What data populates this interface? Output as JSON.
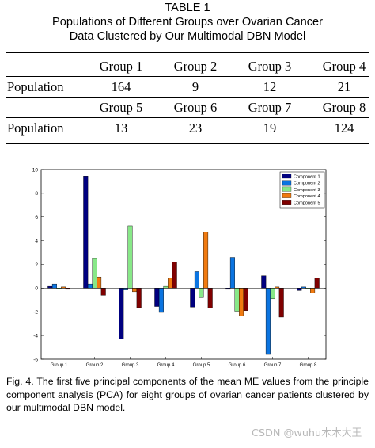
{
  "table": {
    "title_line1": "TABLE 1",
    "title_line2": "Populations of Different Groups over Ovarian Cancer",
    "title_line3": "Data Clustered by Our Multimodal DBN Model",
    "row1_headers": [
      "Group 1",
      "Group 2",
      "Group 3",
      "Group 4"
    ],
    "row1_label": "Population",
    "row1_values": [
      "164",
      "9",
      "12",
      "21"
    ],
    "row2_headers": [
      "Group 5",
      "Group 6",
      "Group 7",
      "Group 8"
    ],
    "row2_label": "Population",
    "row2_values": [
      "13",
      "23",
      "19",
      "124"
    ]
  },
  "chart_data": {
    "type": "bar",
    "categories": [
      "Group 1",
      "Group 2",
      "Group 3",
      "Group 4",
      "Group 5",
      "Group 6",
      "Group 7",
      "Group 8"
    ],
    "series": [
      {
        "name": "Component 1",
        "color": "#000080",
        "values": [
          0.15,
          9.45,
          -4.3,
          -1.55,
          -1.6,
          -0.1,
          1.05,
          -0.2
        ]
      },
      {
        "name": "Component 2",
        "color": "#0b74e0",
        "values": [
          0.35,
          0.35,
          -0.15,
          -2.05,
          1.4,
          2.6,
          -5.6,
          0.1
        ]
      },
      {
        "name": "Component 3",
        "color": "#88e888",
        "values": [
          -0.05,
          2.5,
          5.25,
          0.15,
          -0.8,
          -1.95,
          -0.9,
          -0.05
        ]
      },
      {
        "name": "Component 4",
        "color": "#f07a10",
        "values": [
          0.1,
          0.95,
          -0.3,
          0.85,
          4.75,
          -2.35,
          0.1,
          -0.4
        ]
      },
      {
        "name": "Component 5",
        "color": "#800000",
        "values": [
          -0.1,
          -0.6,
          -1.65,
          2.2,
          -1.7,
          -1.9,
          -2.45,
          0.85
        ]
      }
    ],
    "ylim": [
      -6,
      10
    ],
    "yticks": [
      -6,
      -4,
      -2,
      0,
      2,
      4,
      6,
      8,
      10
    ],
    "legend": "top-right",
    "grid": false
  },
  "caption": "Fig. 4. The first five principal components of the mean ME values from the principle component analysis (PCA) for eight groups of ovarian cancer patients clustered by our multimodal DBN model.",
  "watermark": "CSDN @wuhu木木大王"
}
